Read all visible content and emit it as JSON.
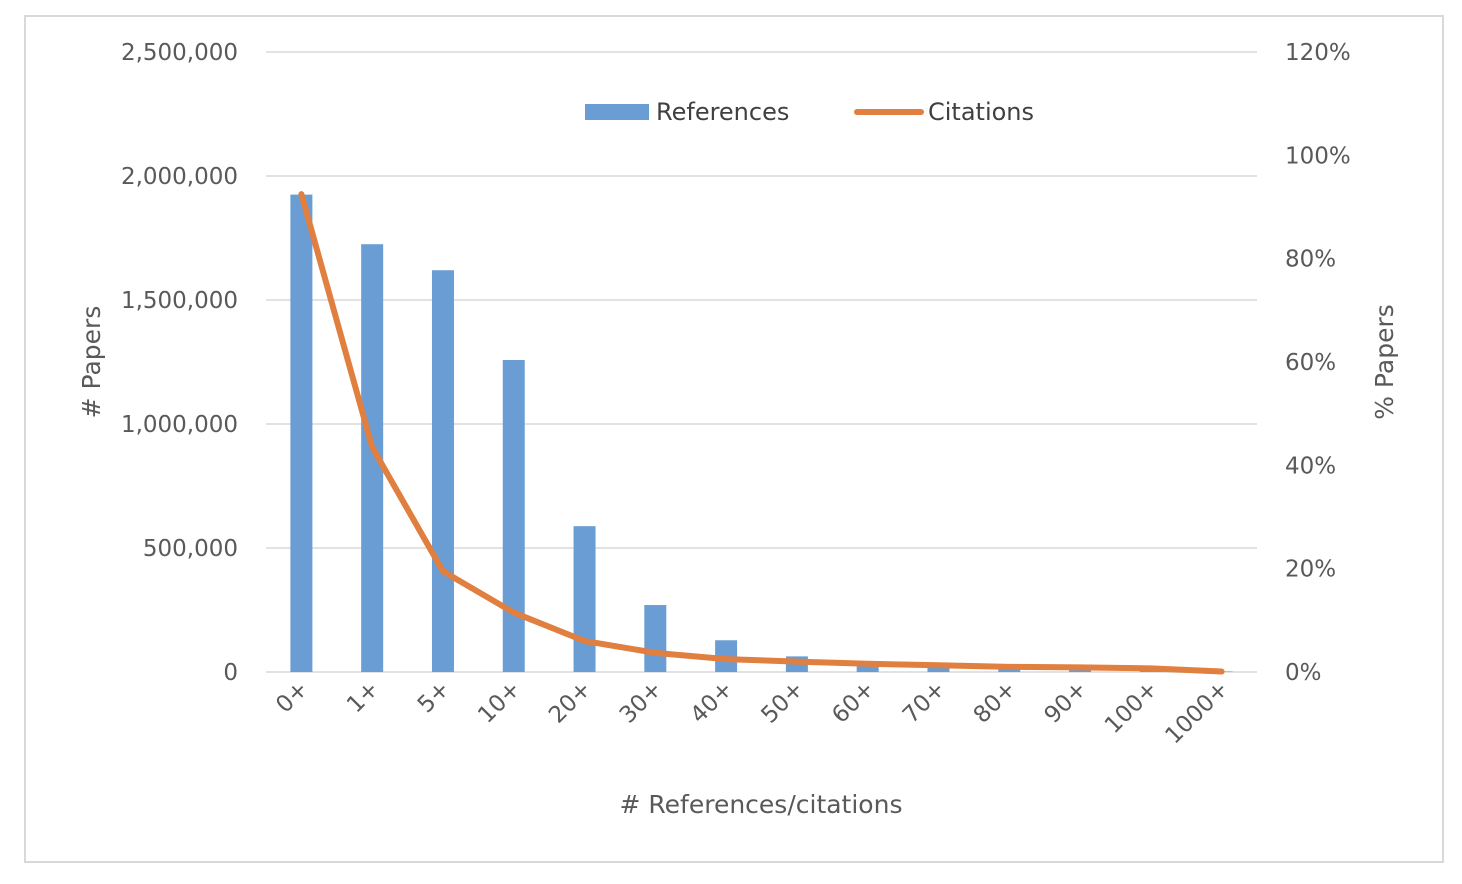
{
  "chart_data": {
    "type": "bar",
    "categories": [
      "0+",
      "1+",
      "5+",
      "10+",
      "20+",
      "30+",
      "40+",
      "50+",
      "60+",
      "70+",
      "80+",
      "90+",
      "100+",
      "1000+"
    ],
    "series": [
      {
        "name": "References",
        "type": "bar",
        "axis": "left",
        "color": "#6a9dd3",
        "values": [
          1925000,
          1725000,
          1620000,
          1258000,
          588000,
          270000,
          128000,
          63000,
          33000,
          20000,
          12000,
          8000,
          6000,
          2000
        ]
      },
      {
        "name": "Citations",
        "type": "line",
        "axis": "right",
        "color": "#e07f3f",
        "values": [
          92.5,
          43.5,
          19.5,
          11.5,
          6.0,
          3.7,
          2.5,
          2.0,
          1.6,
          1.3,
          1.0,
          0.9,
          0.7,
          0.1
        ]
      }
    ],
    "xlabel": "# References/citations",
    "ylabel": "# Papers",
    "y2label": "% Papers",
    "ylim": [
      0,
      2500000
    ],
    "y2lim": [
      0,
      120
    ],
    "yticks": [
      "0",
      "500,000",
      "1,000,000",
      "1,500,000",
      "2,000,000",
      "2,500,000"
    ],
    "y2ticks": [
      "0%",
      "20%",
      "40%",
      "60%",
      "80%",
      "100%",
      "120%"
    ],
    "grid": true,
    "legend_position": "top-center"
  }
}
